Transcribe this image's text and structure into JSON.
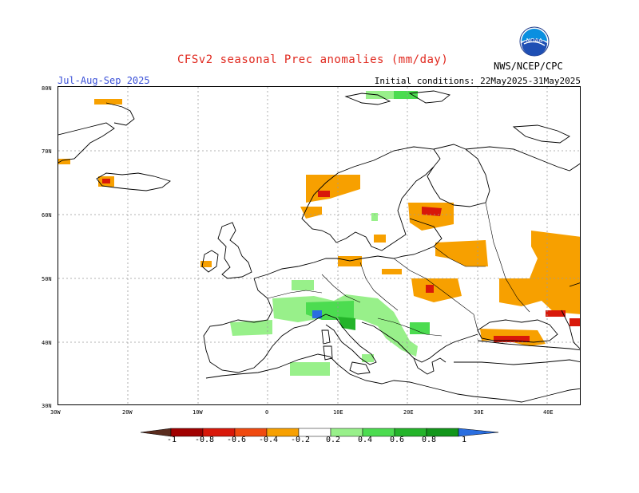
{
  "title": "CFSv2 seasonal Prec anomalies (mm/day)",
  "season": "Jul-Aug-Sep 2025",
  "initial_conditions": "Initial conditions: 22May2025-31May2025",
  "agency": "NWS/NCEP/CPC",
  "logo_text": "NOAA",
  "axes": {
    "lat_labels": [
      "80N",
      "70N",
      "60N",
      "50N",
      "40N",
      "30N"
    ],
    "lon_labels": [
      "30W",
      "20W",
      "10W",
      "0",
      "10E",
      "20E",
      "30E",
      "40E"
    ]
  },
  "legend": {
    "labels": [
      "-1",
      "-0.8",
      "-0.6",
      "-0.4",
      "-0.2",
      "0.2",
      "0.4",
      "0.6",
      "0.8",
      "1"
    ],
    "colors": [
      "#5a2c1e",
      "#a00000",
      "#d8180a",
      "#f04a10",
      "#f7a000",
      "#ffffff",
      "#98f08a",
      "#4cdc50",
      "#24b42a",
      "#12961a",
      "#2a6ee0"
    ]
  },
  "colors": {
    "neg_04": "#f7a000",
    "neg_06": "#f04a10",
    "neg_08": "#d8180a",
    "pos_02": "#98f08a",
    "pos_04": "#4cdc50",
    "pos_06": "#24b42a",
    "pos_1": "#2a6ee0"
  }
}
